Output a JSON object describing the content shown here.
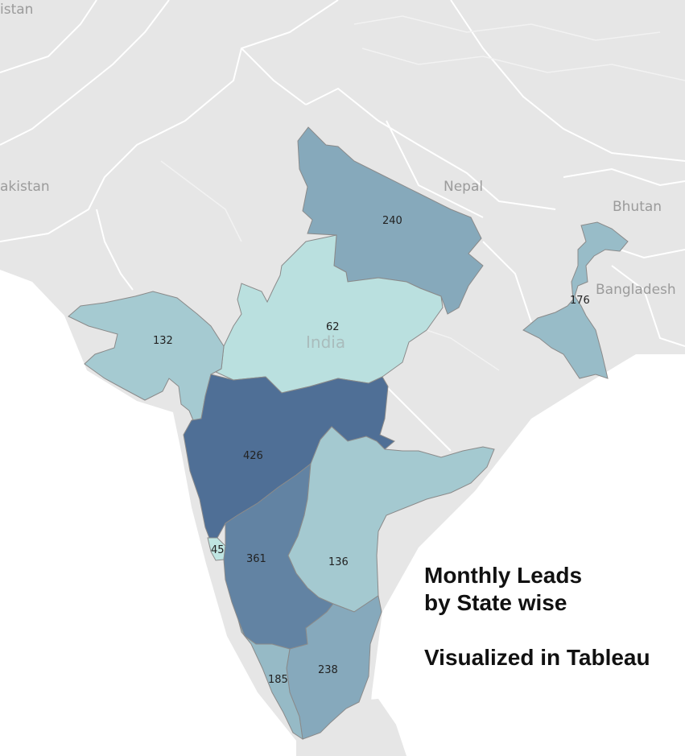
{
  "colors": {
    "land": "#e6e6e6",
    "sea": "#ffffff",
    "border": "#ffffff",
    "state_outline": "#8a8a8a",
    "low": "#bfe5e2",
    "high": "#4f6f96"
  },
  "background_labels": {
    "pakistan_top": "istan",
    "pakistan": "akistan",
    "nepal": "Nepal",
    "bhutan": "Bhutan",
    "bangladesh": "Bangladesh",
    "india": "India"
  },
  "states": [
    {
      "id": "uttar-pradesh",
      "value": 240
    },
    {
      "id": "madhya-pradesh",
      "value": 62
    },
    {
      "id": "gujarat",
      "value": 132
    },
    {
      "id": "west-bengal",
      "value": 176
    },
    {
      "id": "maharashtra",
      "value": 426
    },
    {
      "id": "goa",
      "value": 45
    },
    {
      "id": "karnataka",
      "value": 361
    },
    {
      "id": "andhra-pradesh",
      "value": 136
    },
    {
      "id": "tamil-nadu",
      "value": 238
    },
    {
      "id": "kerala",
      "value": 185
    }
  ],
  "caption": {
    "line1": "Monthly Leads",
    "line2": "by State wise",
    "line3": "Visualized in Tableau"
  }
}
